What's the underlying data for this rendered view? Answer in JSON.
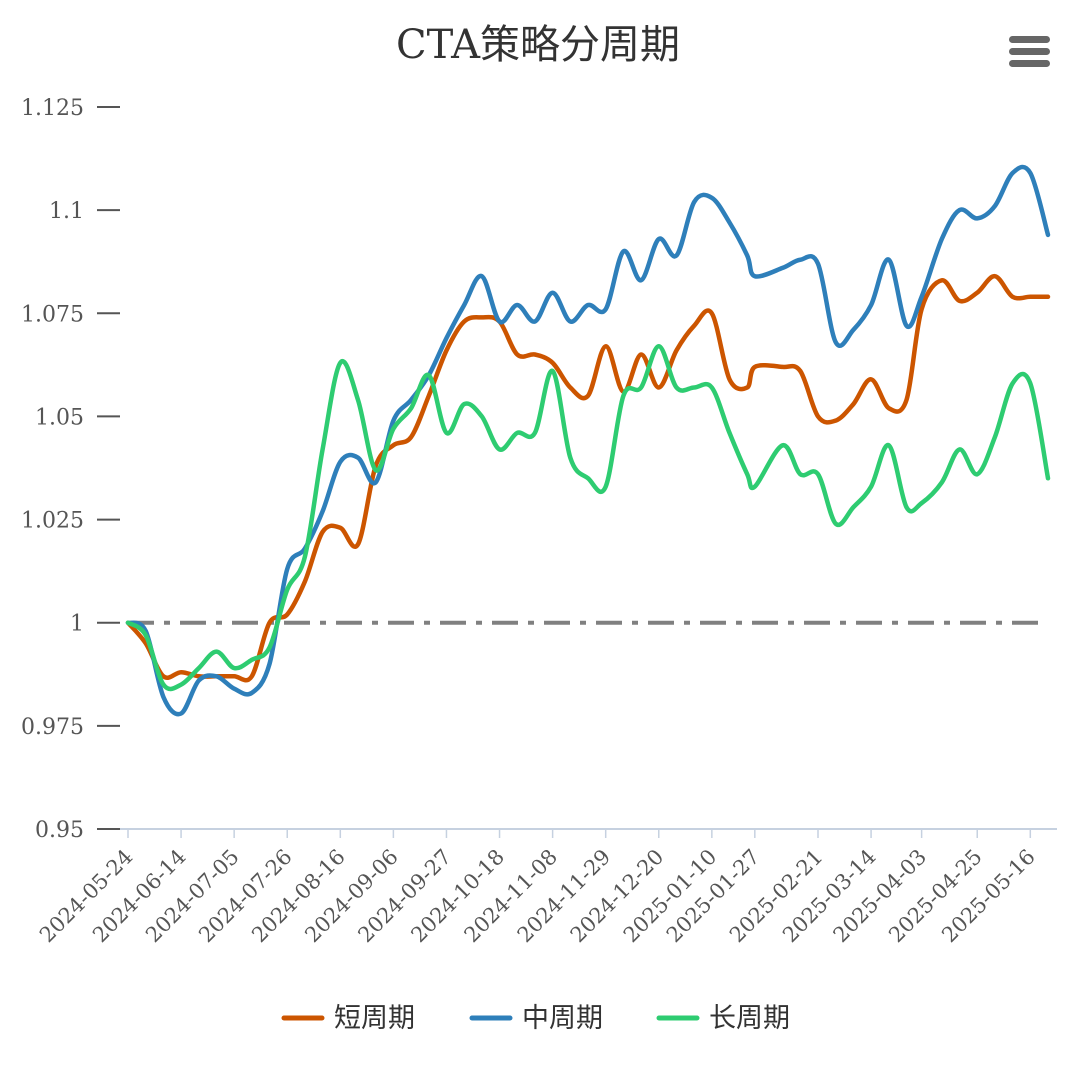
{
  "menu_icon": "hamburger-menu-icon",
  "chart_data": {
    "type": "line",
    "title": "CTA策略分周期",
    "xlabel": "",
    "ylabel": "",
    "ylim": [
      0.95,
      1.125
    ],
    "yticks": [
      0.95,
      0.975,
      1,
      1.025,
      1.05,
      1.075,
      1.1,
      1.125
    ],
    "ytick_labels": [
      "0.95",
      "0.975",
      "1",
      "1.025",
      "1.05",
      "1.075",
      "1.1",
      "1.125"
    ],
    "x_tick_labels": [
      "2024-05-24",
      "2024-06-14",
      "2024-07-05",
      "2024-07-26",
      "2024-08-16",
      "2024-09-06",
      "2024-09-27",
      "2024-10-18",
      "2024-11-08",
      "2024-11-29",
      "2024-12-20",
      "2025-01-10",
      "2025-01-27",
      "2025-02-21",
      "2025-03-14",
      "2025-04-03",
      "2025-04-25",
      "2025-05-16"
    ],
    "reference_line": {
      "y": 1,
      "style": "dash-dot",
      "color": "#808080"
    },
    "grid": false,
    "legend_position": "bottom",
    "x": [
      "2024-05-24",
      "2024-05-31",
      "2024-06-07",
      "2024-06-14",
      "2024-06-21",
      "2024-06-28",
      "2024-07-05",
      "2024-07-12",
      "2024-07-19",
      "2024-07-26",
      "2024-08-02",
      "2024-08-09",
      "2024-08-16",
      "2024-08-23",
      "2024-08-30",
      "2024-09-06",
      "2024-09-13",
      "2024-09-20",
      "2024-09-27",
      "2024-10-04",
      "2024-10-11",
      "2024-10-18",
      "2024-10-25",
      "2024-11-01",
      "2024-11-08",
      "2024-11-15",
      "2024-11-22",
      "2024-11-29",
      "2024-12-06",
      "2024-12-13",
      "2024-12-20",
      "2024-12-27",
      "2025-01-03",
      "2025-01-10",
      "2025-01-17",
      "2025-01-24",
      "2025-01-27",
      "2025-02-07",
      "2025-02-14",
      "2025-02-21",
      "2025-02-28",
      "2025-03-07",
      "2025-03-14",
      "2025-03-21",
      "2025-03-28",
      "2025-04-03",
      "2025-04-11",
      "2025-04-18",
      "2025-04-25",
      "2025-05-02",
      "2025-05-09",
      "2025-05-16",
      "2025-05-23"
    ],
    "series": [
      {
        "name": "短周期",
        "color": "#cc5500",
        "values": [
          1.0,
          0.995,
          0.987,
          0.988,
          0.987,
          0.987,
          0.987,
          0.987,
          1.0,
          1.002,
          1.01,
          1.022,
          1.023,
          1.019,
          1.038,
          1.043,
          1.045,
          1.055,
          1.066,
          1.073,
          1.074,
          1.073,
          1.065,
          1.065,
          1.063,
          1.057,
          1.055,
          1.067,
          1.056,
          1.065,
          1.057,
          1.066,
          1.072,
          1.075,
          1.059,
          1.057,
          1.062,
          1.062,
          1.061,
          1.05,
          1.049,
          1.053,
          1.059,
          1.052,
          1.054,
          1.076,
          1.083,
          1.078,
          1.08,
          1.084,
          1.079,
          1.079,
          1.079
        ]
      },
      {
        "name": "中周期",
        "color": "#2e7fba",
        "values": [
          1.0,
          0.998,
          0.982,
          0.978,
          0.986,
          0.987,
          0.984,
          0.983,
          0.99,
          1.013,
          1.018,
          1.027,
          1.039,
          1.04,
          1.034,
          1.049,
          1.054,
          1.06,
          1.069,
          1.077,
          1.084,
          1.073,
          1.077,
          1.073,
          1.08,
          1.073,
          1.077,
          1.076,
          1.09,
          1.083,
          1.093,
          1.089,
          1.102,
          1.103,
          1.097,
          1.089,
          1.084,
          1.086,
          1.088,
          1.087,
          1.068,
          1.071,
          1.077,
          1.088,
          1.072,
          1.079,
          1.093,
          1.1,
          1.098,
          1.101,
          1.109,
          1.109,
          1.094
        ]
      },
      {
        "name": "长周期",
        "color": "#2ecc71",
        "values": [
          1.0,
          0.997,
          0.985,
          0.985,
          0.989,
          0.993,
          0.989,
          0.991,
          0.994,
          1.008,
          1.016,
          1.042,
          1.063,
          1.054,
          1.037,
          1.047,
          1.052,
          1.06,
          1.046,
          1.053,
          1.05,
          1.042,
          1.046,
          1.046,
          1.061,
          1.04,
          1.035,
          1.033,
          1.055,
          1.057,
          1.067,
          1.057,
          1.057,
          1.057,
          1.046,
          1.036,
          1.033,
          1.043,
          1.036,
          1.036,
          1.024,
          1.028,
          1.033,
          1.043,
          1.028,
          1.029,
          1.034,
          1.042,
          1.036,
          1.045,
          1.058,
          1.058,
          1.035
        ]
      }
    ]
  }
}
